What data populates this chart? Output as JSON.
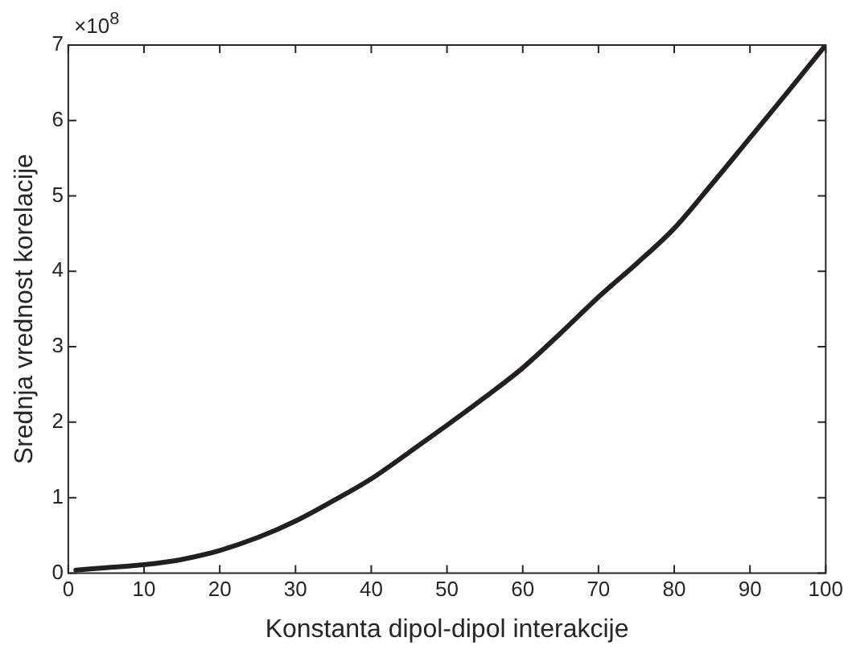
{
  "chart_data": {
    "type": "line",
    "xlabel": "Konstanta dipol-dipol interakcije",
    "ylabel": "Srednja vrednost korelacije",
    "annotations": [
      "×10$^{8}$"
    ],
    "x": [
      1,
      5,
      10,
      15,
      20,
      25,
      30,
      35,
      40,
      45,
      50,
      55,
      60,
      65,
      70,
      75,
      80,
      85,
      90,
      95,
      100
    ],
    "series": [
      {
        "color": "#231f20",
        "values": [
          0.04,
          0.07,
          0.11,
          0.18,
          0.3,
          0.47,
          0.69,
          0.96,
          1.25,
          1.6,
          1.96,
          2.33,
          2.72,
          3.18,
          3.66,
          4.1,
          4.57,
          5.16,
          5.77,
          6.38,
          7
        ]
      }
    ],
    "xlim": [
      0,
      100
    ],
    "xticks": [
      0,
      10,
      20,
      30,
      40,
      50,
      60,
      70,
      80,
      90,
      100
    ],
    "ylim": [
      0,
      7
    ],
    "yticks": [
      0,
      1,
      2,
      3,
      4,
      5,
      6,
      7
    ],
    "marker": "none",
    "line_style": "solid"
  }
}
